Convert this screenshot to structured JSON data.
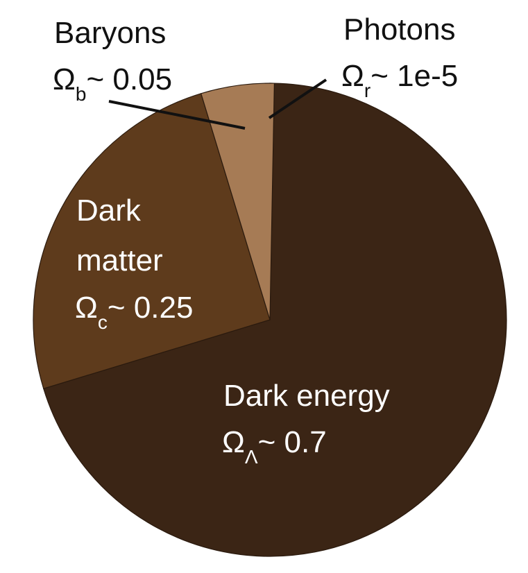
{
  "chart_data": {
    "type": "pie",
    "title": "",
    "series": [
      {
        "name": "Dark energy",
        "symbol": "Ω",
        "subscript": "Λ",
        "value_label": "~ 0.7",
        "value": 0.7,
        "color": "#3b2515"
      },
      {
        "name": "Dark matter",
        "symbol": "Ω",
        "subscript": "c",
        "value_label": "~ 0.25",
        "value": 0.25,
        "color": "#5e3b1c"
      },
      {
        "name": "Baryons",
        "symbol": "Ω",
        "subscript": "b",
        "value_label": "~ 0.05",
        "value": 0.05,
        "color": "#a67b55"
      },
      {
        "name": "Photons",
        "symbol": "Ω",
        "subscript": "r",
        "value_label": "~ 1e-5",
        "value": 1e-05,
        "color": "#c8956a"
      }
    ]
  }
}
